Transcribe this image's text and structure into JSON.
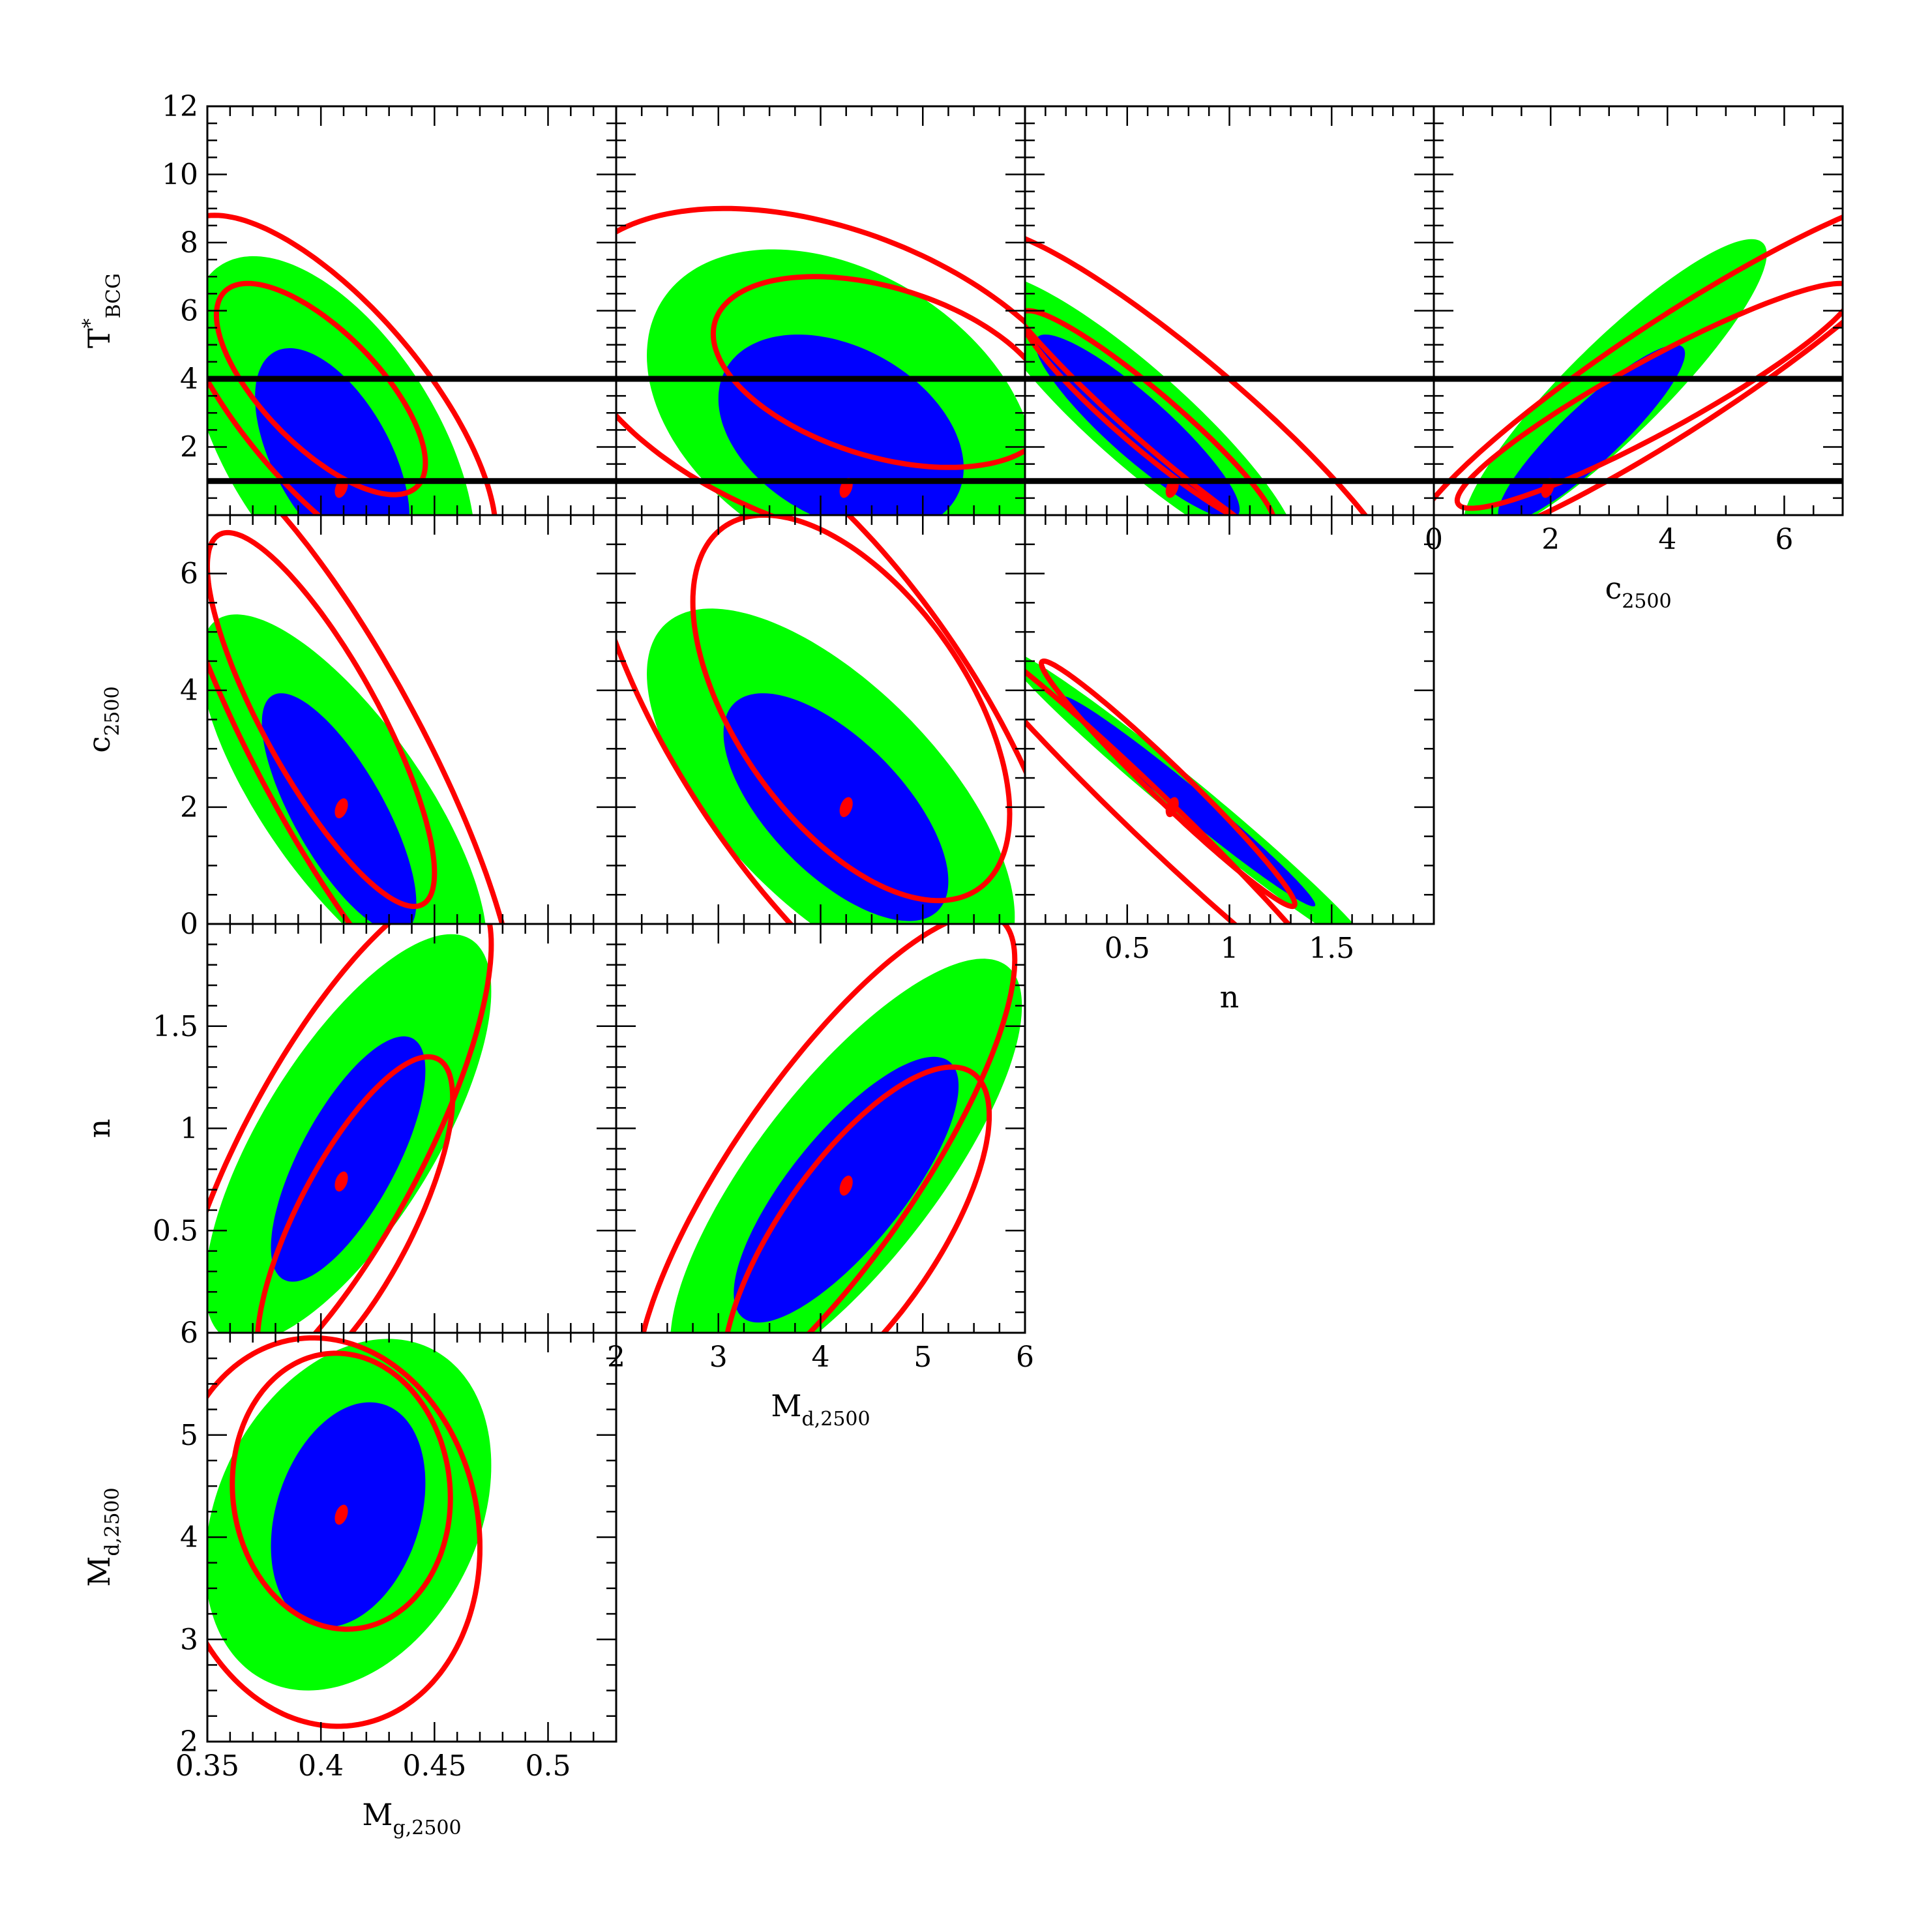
{
  "chart_data": {
    "type": "corner-contour",
    "description_free": true,
    "colors": {
      "inner_region": "#0000ff",
      "outer_region": "#00ff00",
      "contours": "#ff0000",
      "bounds_lines": "#000000"
    },
    "params": [
      {
        "key": "Mg",
        "label": "M",
        "sub": "g,2500",
        "range": [
          0.35,
          0.53
        ],
        "ticks": [
          0.35,
          0.4,
          0.45,
          0.5
        ],
        "tick_labels": [
          "0.35",
          "0.4",
          "0.45",
          "0.5"
        ]
      },
      {
        "key": "Md",
        "label": "M",
        "sub": "d,2500",
        "range": [
          2,
          6
        ],
        "ticks": [
          2,
          3,
          4,
          5,
          6
        ],
        "tick_labels": [
          "2",
          "3",
          "4",
          "5",
          "6"
        ]
      },
      {
        "key": "n",
        "label": "n",
        "sub": "",
        "range": [
          0,
          2
        ],
        "ticks": [
          0.5,
          1,
          1.5
        ],
        "tick_labels": [
          "0.5",
          "1",
          "1.5"
        ]
      },
      {
        "key": "c",
        "label": "c",
        "sub": "2500",
        "range": [
          0,
          7
        ],
        "ticks": [
          0,
          2,
          4,
          6
        ],
        "tick_labels": [
          "0",
          "2",
          "4",
          "6"
        ]
      },
      {
        "key": "T",
        "label": "T",
        "sup": "*",
        "sub": "BCG",
        "range": [
          0,
          12
        ],
        "ticks": [
          2,
          4,
          6,
          8,
          10,
          12
        ],
        "tick_labels": [
          "2",
          "4",
          "6",
          "8",
          "10",
          "12"
        ]
      }
    ],
    "y_axes": {
      "Md": {
        "ticks": [
          2,
          3,
          4,
          5,
          6
        ],
        "tick_labels": [
          "2",
          "3",
          "4",
          "5",
          "6"
        ]
      },
      "n": {
        "ticks": [
          0.5,
          1,
          1.5
        ],
        "tick_labels": [
          "0.5",
          "1",
          "1.5"
        ]
      },
      "c": {
        "ticks": [
          0,
          2,
          4,
          6
        ],
        "tick_labels": [
          "0",
          "2",
          "4",
          "6"
        ]
      },
      "T": {
        "ticks": [
          2,
          4,
          6,
          8,
          10,
          12
        ],
        "tick_labels": [
          "2",
          "4",
          "6",
          "8",
          "10",
          "12"
        ]
      }
    },
    "horizontal_bounds_T": [
      1,
      4
    ],
    "panels": [
      {
        "x": "Mg",
        "y": "Md",
        "green": {
          "cx": 0.412,
          "cy": 4.22,
          "a": 0.063,
          "b": 1.72,
          "rho": 0.28
        },
        "blue": {
          "cx": 0.412,
          "cy": 4.22,
          "a": 0.034,
          "b": 1.1,
          "rho": 0.28
        },
        "red": [
          {
            "cx": 0.409,
            "cy": 4.45,
            "a": 0.048,
            "b": 1.35,
            "rho": -0.05
          },
          {
            "cx": 0.402,
            "cy": 4.05,
            "a": 0.068,
            "b": 1.9,
            "rho": -0.08
          }
        ],
        "best": {
          "x": 0.409,
          "y": 4.22
        }
      },
      {
        "x": "Mg",
        "y": "n",
        "green": {
          "cx": 0.412,
          "cy": 0.95,
          "a": 0.063,
          "b": 1.0,
          "rho": 0.72
        },
        "blue": {
          "cx": 0.412,
          "cy": 0.85,
          "a": 0.034,
          "b": 0.6,
          "rho": 0.72
        },
        "red": [
          {
            "cx": 0.415,
            "cy": 0.55,
            "a": 0.043,
            "b": 0.8,
            "rho": 0.75
          },
          {
            "cx": 0.405,
            "cy": 0.9,
            "a": 0.07,
            "b": 1.28,
            "rho": 0.78
          }
        ],
        "best": {
          "x": 0.409,
          "y": 0.74
        }
      },
      {
        "x": "Mg",
        "y": "c",
        "green": {
          "cx": 0.41,
          "cy": 2.1,
          "a": 0.063,
          "b": 3.2,
          "rho": -0.75
        },
        "blue": {
          "cx": 0.408,
          "cy": 1.9,
          "a": 0.034,
          "b": 2.05,
          "rho": -0.75
        },
        "red": [
          {
            "cx": 0.4,
            "cy": 3.5,
            "a": 0.05,
            "b": 3.2,
            "rho": -0.82
          },
          {
            "cx": 0.408,
            "cy": 3.0,
            "a": 0.078,
            "b": 5.2,
            "rho": -0.85
          }
        ],
        "best": {
          "x": 0.409,
          "y": 1.98
        }
      },
      {
        "x": "Mg",
        "y": "T",
        "green": {
          "cx": 0.405,
          "cy": 2.1,
          "a": 0.063,
          "b": 5.5,
          "rho": -0.55
        },
        "blue": {
          "cx": 0.405,
          "cy": 1.7,
          "a": 0.034,
          "b": 3.2,
          "rho": -0.55
        },
        "red": [
          {
            "cx": 0.4,
            "cy": 3.7,
            "a": 0.046,
            "b": 3.1,
            "rho": -0.7
          },
          {
            "cx": 0.405,
            "cy": 3.4,
            "a": 0.072,
            "b": 5.4,
            "rho": -0.72
          }
        ],
        "best": {
          "x": 0.409,
          "y": 0.8
        }
      },
      {
        "x": "Md",
        "y": "n",
        "green": {
          "cx": 4.25,
          "cy": 0.78,
          "a": 1.72,
          "b": 1.05,
          "rho": 0.78
        },
        "blue": {
          "cx": 4.25,
          "cy": 0.7,
          "a": 1.1,
          "b": 0.65,
          "rho": 0.78
        },
        "red": [
          {
            "cx": 4.35,
            "cy": 0.45,
            "a": 1.3,
            "b": 0.85,
            "rho": 0.72
          },
          {
            "cx": 4.05,
            "cy": 0.8,
            "a": 1.85,
            "b": 1.25,
            "rho": 0.82
          }
        ],
        "best": {
          "x": 4.25,
          "y": 0.72
        }
      },
      {
        "x": "Md",
        "y": "c",
        "green": {
          "cx": 4.1,
          "cy": 2.2,
          "a": 1.8,
          "b": 3.2,
          "rho": -0.65
        },
        "blue": {
          "cx": 4.15,
          "cy": 2.0,
          "a": 1.1,
          "b": 1.95,
          "rho": -0.65
        },
        "red": [
          {
            "cx": 4.3,
            "cy": 3.7,
            "a": 1.55,
            "b": 3.3,
            "rho": -0.55
          },
          {
            "cx": 4.1,
            "cy": 3.3,
            "a": 2.4,
            "b": 5.6,
            "rho": -0.7
          }
        ],
        "best": {
          "x": 4.25,
          "y": 2.0
        }
      },
      {
        "x": "Md",
        "y": "T",
        "green": {
          "cx": 4.2,
          "cy": 3.0,
          "a": 1.9,
          "b": 4.8,
          "rho": -0.35
        },
        "blue": {
          "cx": 4.2,
          "cy": 2.4,
          "a": 1.2,
          "b": 2.9,
          "rho": -0.35
        },
        "red": [
          {
            "cx": 4.6,
            "cy": 4.2,
            "a": 1.65,
            "b": 2.8,
            "rho": -0.4
          },
          {
            "cx": 4.1,
            "cy": 4.0,
            "a": 2.6,
            "b": 5.0,
            "rho": -0.4
          }
        ],
        "best": {
          "x": 4.25,
          "y": 0.8
        }
      },
      {
        "x": "n",
        "y": "c",
        "green": {
          "cx": 0.8,
          "cy": 2.1,
          "a": 0.9,
          "b": 2.6,
          "rho": -0.985
        },
        "blue": {
          "cx": 0.8,
          "cy": 2.1,
          "a": 0.62,
          "b": 1.8,
          "rho": -0.985
        },
        "red": [
          {
            "cx": 0.7,
            "cy": 2.4,
            "a": 0.62,
            "b": 2.1,
            "rho": -0.98
          },
          {
            "cx": 0.6,
            "cy": 1.9,
            "a": 0.95,
            "b": 3.2,
            "rho": -0.985
          }
        ],
        "best": {
          "x": 0.72,
          "y": 2.0
        }
      },
      {
        "x": "n",
        "y": "T",
        "green": {
          "cx": 0.55,
          "cy": 2.9,
          "a": 0.78,
          "b": 4.2,
          "rho": -0.9
        },
        "blue": {
          "cx": 0.55,
          "cy": 2.6,
          "a": 0.5,
          "b": 2.7,
          "rho": -0.9
        },
        "red": [
          {
            "cx": 0.6,
            "cy": 2.8,
            "a": 0.62,
            "b": 3.2,
            "rho": -0.94
          },
          {
            "cx": 0.8,
            "cy": 3.0,
            "a": 1.05,
            "b": 5.4,
            "rho": -0.93
          }
        ],
        "best": {
          "x": 0.72,
          "y": 0.8
        }
      },
      {
        "x": "c",
        "y": "T",
        "green": {
          "cx": 3.1,
          "cy": 3.7,
          "a": 2.6,
          "b": 4.4,
          "rho": 0.9
        },
        "blue": {
          "cx": 2.7,
          "cy": 2.4,
          "a": 1.6,
          "b": 2.6,
          "rho": 0.9
        },
        "red": [
          {
            "cx": 3.8,
            "cy": 3.5,
            "a": 3.4,
            "b": 3.3,
            "rho": 0.93
          },
          {
            "cx": 4.2,
            "cy": 4.2,
            "a": 4.6,
            "b": 5.3,
            "rho": 0.93
          }
        ],
        "best": {
          "x": 1.95,
          "y": 0.8
        }
      }
    ]
  }
}
